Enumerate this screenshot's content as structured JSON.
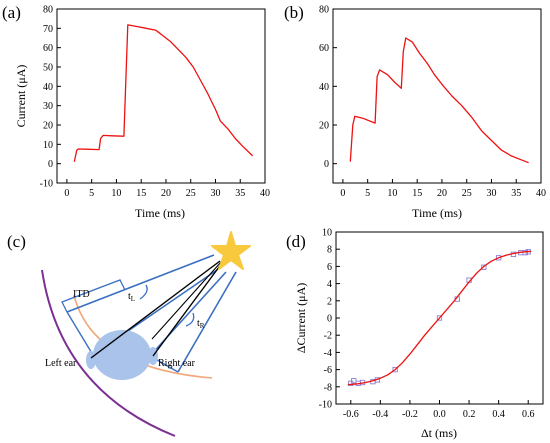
{
  "chart_data": [
    {
      "panel_label": "(a)",
      "type": "line",
      "xlabel": "Time (ms)",
      "ylabel": "Current (μA)",
      "xlim": [
        -2,
        40
      ],
      "ylim": [
        -10,
        80
      ],
      "xticks": [
        0,
        5,
        10,
        15,
        20,
        25,
        30,
        35,
        40
      ],
      "yticks": [
        -10,
        0,
        10,
        20,
        30,
        40,
        50,
        60,
        70,
        80
      ],
      "series": [
        {
          "color": "#ee1111",
          "x": [
            1.5,
            2.0,
            2.3,
            4,
            6.5,
            6.8,
            7.3,
            9,
            11.5,
            12.0,
            12.3,
            14,
            16,
            18,
            19.5,
            21,
            22.5,
            24,
            25.5,
            27,
            28.5,
            30,
            31,
            32.5,
            34,
            35.5,
            37.5
          ],
          "y": [
            1,
            7,
            7.6,
            7.5,
            7.3,
            13,
            14.6,
            14.4,
            14.2,
            50,
            71.8,
            71,
            70,
            69,
            66,
            63,
            59,
            55,
            50,
            43,
            36,
            28,
            22,
            18,
            13,
            9,
            4
          ]
        }
      ]
    },
    {
      "panel_label": "(b)",
      "type": "line",
      "xlabel": "Time (ms)",
      "ylabel": "",
      "xlim": [
        -2,
        40
      ],
      "ylim": [
        -10,
        80
      ],
      "xticks": [
        0,
        5,
        10,
        15,
        20,
        25,
        30,
        35,
        40
      ],
      "yticks": [
        0,
        20,
        40,
        60,
        80
      ],
      "series": [
        {
          "color": "#ee1111",
          "x": [
            1.5,
            2.0,
            2.4,
            4,
            6.5,
            6.9,
            7.4,
            9,
            10.5,
            11.8,
            12.2,
            12.7,
            14,
            15.5,
            17,
            18.5,
            20,
            22,
            24,
            26,
            28,
            30,
            32,
            34,
            36,
            37.5
          ],
          "y": [
            1,
            20,
            24.5,
            23.5,
            21,
            45,
            48.5,
            46,
            42,
            39,
            58,
            65,
            63,
            57,
            52,
            46,
            41,
            35,
            30,
            24,
            17,
            12,
            7,
            4,
            2,
            0.5
          ]
        }
      ]
    },
    {
      "panel_label": "(d)",
      "type": "scatter",
      "xlabel": "Δt (ms)",
      "ylabel": "ΔCurrent (μA)",
      "xlim": [
        -0.7,
        0.7
      ],
      "ylim": [
        -10,
        10
      ],
      "xticks": [
        -0.6,
        -0.4,
        -0.2,
        0.0,
        0.2,
        0.4,
        0.6
      ],
      "xtick_labels": [
        "-0.6",
        "-0.4",
        "-0.2",
        "0.0",
        "0.2",
        "0.4",
        "0.6"
      ],
      "yticks": [
        -10,
        -8,
        -6,
        -4,
        -2,
        0,
        2,
        4,
        6,
        8,
        10
      ],
      "series": [
        {
          "name_shown": false,
          "style": "open-square",
          "color": "#8a7fd0",
          "x": [
            -0.6,
            -0.58,
            -0.55,
            -0.52,
            -0.45,
            -0.42,
            -0.3,
            0.0,
            0.12,
            0.2,
            0.3,
            0.4,
            0.5,
            0.55,
            0.58,
            0.6
          ],
          "y": [
            -7.6,
            -7.3,
            -7.6,
            -7.5,
            -7.4,
            -7.2,
            -6.0,
            0.0,
            2.2,
            4.4,
            5.9,
            7.0,
            7.4,
            7.6,
            7.6,
            7.7
          ]
        },
        {
          "name_shown": false,
          "style": "fit-line",
          "color": "#ee1111",
          "x": [
            -0.62,
            -0.55,
            -0.5,
            -0.45,
            -0.4,
            -0.35,
            -0.3,
            -0.25,
            -0.2,
            -0.15,
            -0.1,
            -0.05,
            0.0,
            0.05,
            0.1,
            0.15,
            0.2,
            0.25,
            0.3,
            0.35,
            0.4,
            0.45,
            0.5,
            0.55,
            0.62
          ],
          "y": [
            -7.75,
            -7.65,
            -7.5,
            -7.3,
            -7.0,
            -6.6,
            -6.0,
            -5.2,
            -4.2,
            -3.1,
            -2.0,
            -1.0,
            0.0,
            1.0,
            2.0,
            3.1,
            4.2,
            5.2,
            6.0,
            6.6,
            7.0,
            7.3,
            7.5,
            7.65,
            7.75
          ]
        }
      ]
    }
  ],
  "diagram_c": {
    "panel_label": "(c)",
    "itd_label": "ITD",
    "tl_label": "t",
    "tl_sub": "L",
    "tr_label": "t",
    "tr_sub": "R",
    "left_ear_label": "Left ear",
    "right_ear_label": "Right ear",
    "colors": {
      "star": "#f8c93c",
      "beams": "#3a6fc2",
      "head": "#a9c3ea",
      "inner_arc": "#f2a77a",
      "outer_arc": "#7b2f93",
      "lines": "#000000"
    }
  }
}
